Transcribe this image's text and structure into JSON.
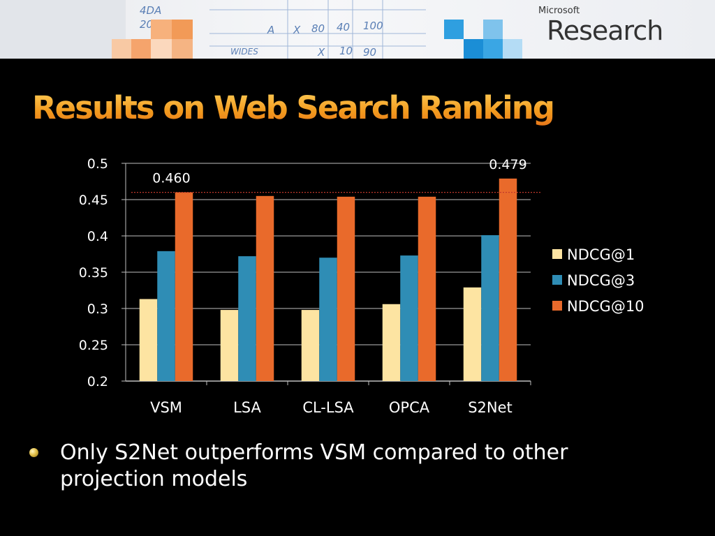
{
  "header": {
    "brand_small": "Microsoft",
    "brand_big": "Research",
    "board_text": [
      "A",
      "X",
      "80",
      "40",
      "100",
      "X",
      "10",
      "90",
      "4DA",
      "20",
      "WIDES"
    ]
  },
  "slide": {
    "title": "Results on Web Search Ranking",
    "bullet": "Only S2Net outperforms VSM compared to other projection models"
  },
  "colors": {
    "ndcg1": "#fde4a2",
    "ndcg3": "#2f8db5",
    "ndcg10": "#e96a2b",
    "reference_line": "#c0392b",
    "grid": "#bfbfbf",
    "text": "#ffffff",
    "title": "#f5a623"
  },
  "chart_data": {
    "type": "bar",
    "title": "",
    "xlabel": "",
    "ylabel": "",
    "categories": [
      "VSM",
      "LSA",
      "CL-LSA",
      "OPCA",
      "S2Net"
    ],
    "series": [
      {
        "name": "NDCG@1",
        "values": [
          0.313,
          0.298,
          0.298,
          0.306,
          0.329
        ]
      },
      {
        "name": "NDCG@3",
        "values": [
          0.379,
          0.372,
          0.37,
          0.373,
          0.401
        ]
      },
      {
        "name": "NDCG@10",
        "values": [
          0.46,
          0.455,
          0.454,
          0.454,
          0.479
        ]
      }
    ],
    "ylim": [
      0.2,
      0.5
    ],
    "yticks": [
      "0.5",
      "0.45",
      "0.4",
      "0.35",
      "0.3",
      "0.25",
      "0.2"
    ],
    "grid": true,
    "legend_position": "right",
    "reference_line": {
      "value": 0.46
    },
    "annotations": [
      {
        "category": "VSM",
        "series": "NDCG@10",
        "label": "0.460"
      },
      {
        "category": "S2Net",
        "series": "NDCG@10",
        "label": "0.479"
      }
    ]
  }
}
